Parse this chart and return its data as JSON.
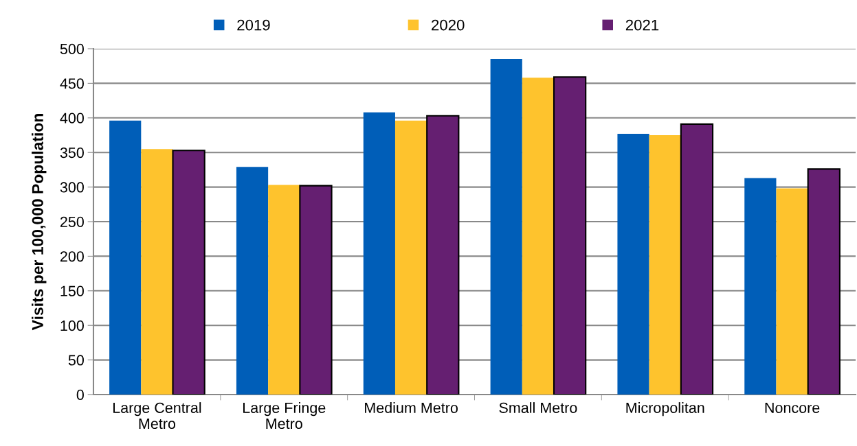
{
  "chart_data": {
    "type": "bar",
    "ylabel": "Visits per 100,000 Population",
    "categories": [
      "Large Central\nMetro",
      "Large Fringe\nMetro",
      "Medium Metro",
      "Small Metro",
      "Micropolitan",
      "Noncore"
    ],
    "series": [
      {
        "name": "2019",
        "color": "#005eb8",
        "values": [
          396,
          329,
          408,
          485,
          377,
          313
        ]
      },
      {
        "name": "2020",
        "color": "#fec32d",
        "values": [
          355,
          303,
          396,
          458,
          375,
          298
        ]
      },
      {
        "name": "2021",
        "color": "#651f71",
        "values": [
          353,
          302,
          403,
          459,
          391,
          326
        ]
      }
    ],
    "ylim": [
      0,
      500
    ],
    "yticks": [
      0,
      50,
      100,
      150,
      200,
      250,
      300,
      350,
      400,
      450,
      500
    ],
    "grid": "y",
    "legend": "top"
  }
}
